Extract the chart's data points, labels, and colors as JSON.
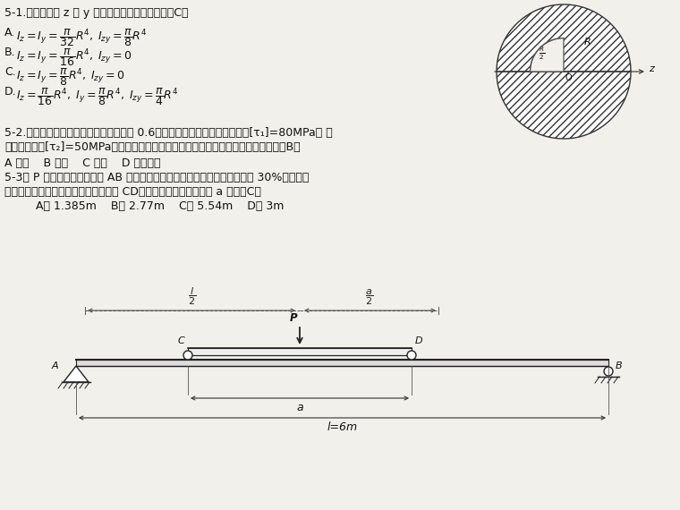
{
  "bg_color": "#f2f0eb",
  "text_color": "#111111",
  "q1_title": "5-1.图示截面对 z 和 y 轴的惯性矩和惯性积为：（C）",
  "q1_A": "A. $I_z = I_y = \\dfrac{\\pi}{32}R^4,\\; I_{zy} = \\dfrac{\\pi}{8}R^4$",
  "q1_B": "B. $I_z = I_y = \\dfrac{\\pi}{16}R^4,\\; I_{zy} = 0$",
  "q1_C": "C. $I_z = I_y = \\dfrac{\\pi}{8}R^4,\\; I_{zy} = 0$",
  "q1_D": "D. $I_z = \\dfrac{\\pi}{16}R^4,\\; I_y = \\dfrac{\\pi}{8}R^4,\\; I_{zy} = \\dfrac{\\pi}{4}R^4$",
  "q2_line1": "5-2.钙制实心轴和铝制空心轴（直径比为 0.6）长度及横截面积均相等，应力[τ₁]=80MPa。 铝",
  "q2_line2": "的许用剪应力[τ₂]=50MPa。若仅从强度条件考虑，问哪一根轴能承受较大的扇矩：（B）",
  "q2_opts": "A 钙制    B 铝制    C 相同    D 无法判断",
  "q3_line1": "5-3当 P 力直接作用在简又梁 AB 的中点时，梁内的最大应力超过许用应力值 30%。为了消",
  "q3_line2": "除过载现象，配置了如图所示的辅助梁 CD；试确定此辅助梁的跨度 a 为：（C）",
  "q3_opts": "A． 1.385m    B． 2.77m    C． 5.54m    D． 3m"
}
